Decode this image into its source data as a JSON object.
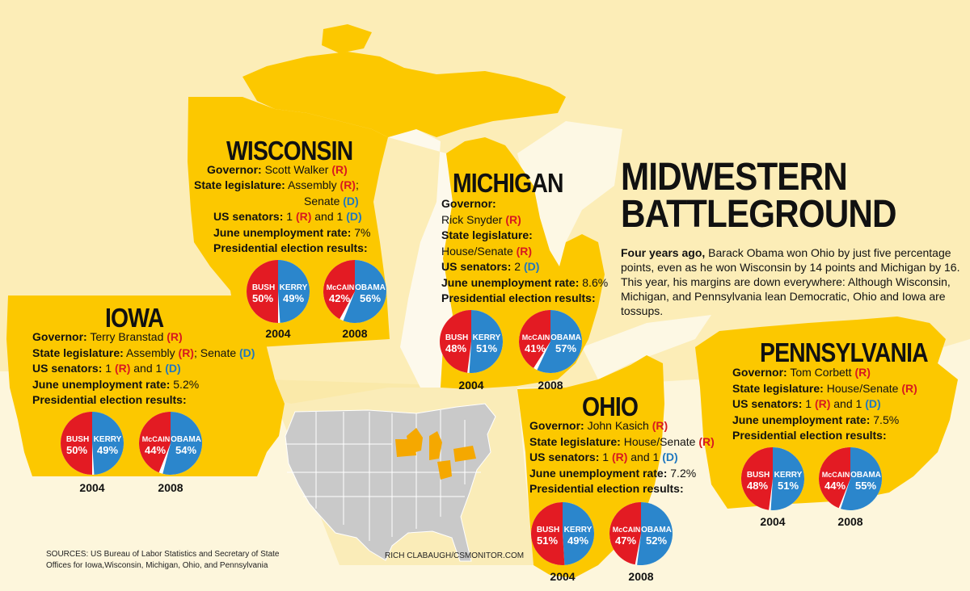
{
  "headline": {
    "line1": "MIDWESTERN",
    "line2": "BATTLEGROUND"
  },
  "summary": {
    "lead": "Four years ago,",
    "text": " Barack Obama won Ohio by just five percentage points, even as he won Wisconsin by 14 points and Michigan by 16. This year, his margins are down everywhere: Although Wisconsin, Michigan, and Pennsylvania lean Democratic, Ohio and Iowa are tossups."
  },
  "labels": {
    "governor": "Governor:",
    "legislature": "State legislature:",
    "senators": "US senators:",
    "unemployment": "June unemployment rate:",
    "results": "Presidential election results:"
  },
  "states": {
    "wisconsin": {
      "name": "WISCONSIN",
      "governor": "Scott Walker",
      "governor_party": "(R)",
      "leg_a": "Assembly",
      "leg_a_party": "(R)",
      "leg_a_sep": ";",
      "leg_b": "Senate",
      "leg_b_party": "(D)",
      "senators_pre": "1",
      "senators_p1": "(R)",
      "senators_mid": "and 1",
      "senators_p2": "(D)",
      "unemployment": "7%",
      "e2004": {
        "year": "2004",
        "r_name": "BUSH",
        "r_pct": "50%",
        "r": 50,
        "d_name": "KERRY",
        "d_pct": "49%",
        "d": 49
      },
      "e2008": {
        "year": "2008",
        "r_name": "McCAIN",
        "r_pct": "42%",
        "r": 42,
        "d_name": "OBAMA",
        "d_pct": "56%",
        "d": 56
      }
    },
    "iowa": {
      "name": "IOWA",
      "governor": "Terry Branstad",
      "governor_party": "(R)",
      "leg_a": "Assembly",
      "leg_a_party": "(R)",
      "leg_a_sep": ";",
      "leg_b": "Senate",
      "leg_b_party": "(D)",
      "senators_pre": "1",
      "senators_p1": "(R)",
      "senators_mid": "and 1",
      "senators_p2": "(D)",
      "unemployment": "5.2%",
      "e2004": {
        "year": "2004",
        "r_name": "BUSH",
        "r_pct": "50%",
        "r": 50,
        "d_name": "KERRY",
        "d_pct": "49%",
        "d": 49
      },
      "e2008": {
        "year": "2008",
        "r_name": "McCAIN",
        "r_pct": "44%",
        "r": 44,
        "d_name": "OBAMA",
        "d_pct": "54%",
        "d": 54
      }
    },
    "michigan": {
      "name": "MICHIGAN",
      "governor": "Rick Snyder",
      "governor_party": "(R)",
      "leg": "House/Senate",
      "leg_party": "(R)",
      "senators_pre": "2",
      "senators_p1": "(D)",
      "unemployment": "8.6%",
      "e2004": {
        "year": "2004",
        "r_name": "BUSH",
        "r_pct": "48%",
        "r": 48,
        "d_name": "KERRY",
        "d_pct": "51%",
        "d": 51
      },
      "e2008": {
        "year": "2008",
        "r_name": "McCAIN",
        "r_pct": "41%",
        "r": 41,
        "d_name": "OBAMA",
        "d_pct": "57%",
        "d": 57
      }
    },
    "ohio": {
      "name": "OHIO",
      "governor": "John Kasich",
      "governor_party": "(R)",
      "leg": "House/Senate",
      "leg_party": "(R)",
      "senators_pre": "1",
      "senators_p1": "(R)",
      "senators_mid": "and 1",
      "senators_p2": "(D)",
      "unemployment": "7.2%",
      "e2004": {
        "year": "2004",
        "r_name": "BUSH",
        "r_pct": "51%",
        "r": 51,
        "d_name": "KERRY",
        "d_pct": "49%",
        "d": 49
      },
      "e2008": {
        "year": "2008",
        "r_name": "McCAIN",
        "r_pct": "47%",
        "r": 47,
        "d_name": "OBAMA",
        "d_pct": "52%",
        "d": 52
      }
    },
    "pennsylvania": {
      "name": "PENNSYLVANIA",
      "governor": "Tom Corbett",
      "governor_party": "(R)",
      "leg": "House/Senate",
      "leg_party": "(R)",
      "senators_pre": "1",
      "senators_p1": "(R)",
      "senators_mid": "and 1",
      "senators_p2": "(D)",
      "unemployment": "7.5%",
      "e2004": {
        "year": "2004",
        "r_name": "BUSH",
        "r_pct": "48%",
        "r": 48,
        "d_name": "KERRY",
        "d_pct": "51%",
        "d": 51
      },
      "e2008": {
        "year": "2008",
        "r_name": "McCAIN",
        "r_pct": "44%",
        "r": 44,
        "d_name": "OBAMA",
        "d_pct": "55%",
        "d": 55
      }
    }
  },
  "sources": {
    "line1": "SOURCES: US Bureau of Labor Statistics and Secretary of State",
    "line2": "Offices for Iowa,Wisconsin, Michigan, Ohio, and Pennsylvania"
  },
  "credit": "RICH CLABAUGH/CSMONITOR.COM",
  "colors": {
    "republican": "#e31b23",
    "democrat": "#2b86cc",
    "state_fill": "#fcc800",
    "background": "#fdf6dc",
    "neighbor": "#fbe9a0",
    "inset_gray": "#c9c9c9",
    "inset_highlight": "#f5a800"
  }
}
